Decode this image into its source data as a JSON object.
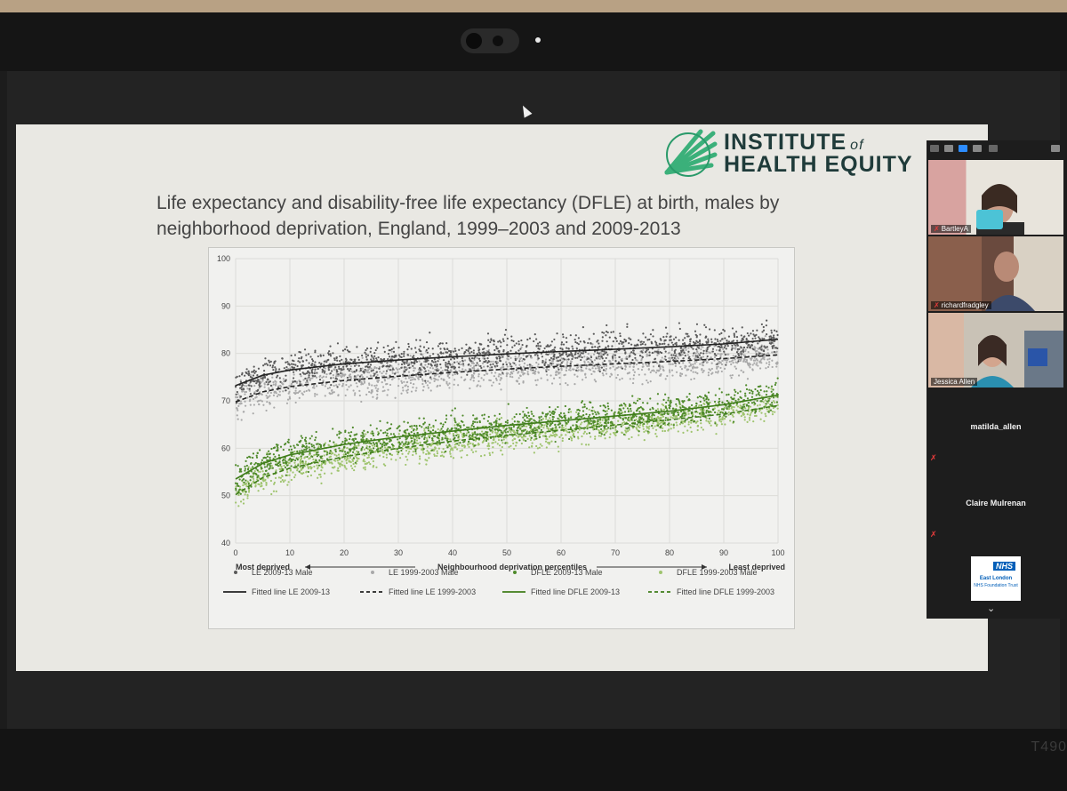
{
  "device": {
    "model": "T490"
  },
  "slide": {
    "logo_line1": "INSTITUTE",
    "logo_of": "of",
    "logo_line2": "HEALTH EQUITY",
    "title_line1": "Life expectancy and disability-free life expectancy (DFLE) at birth, males by",
    "title_line2": "neighborhood deprivation, England, 1999–2003 and 2009-2013"
  },
  "chart_data": {
    "type": "scatter",
    "xlim": [
      0,
      100
    ],
    "ylim": [
      40,
      100
    ],
    "x_ticks": [
      0,
      10,
      20,
      30,
      40,
      50,
      60,
      70,
      80,
      90,
      100
    ],
    "y_ticks": [
      40,
      50,
      60,
      70,
      80,
      90,
      100
    ],
    "xlabel": "Neighbourhood deprivation percentiles",
    "xlabel_left": "Most deprived",
    "xlabel_right": "Least deprived",
    "grid": true,
    "legend_position": "bottom",
    "fitted_lines": [
      {
        "name": "Fitted line LE 2009-13",
        "color": "#222222",
        "dash": false,
        "x": [
          0,
          5,
          10,
          20,
          30,
          40,
          50,
          60,
          70,
          80,
          90,
          100
        ],
        "y": [
          73.2,
          75.4,
          76.5,
          77.8,
          78.6,
          79.3,
          79.9,
          80.4,
          80.9,
          81.4,
          82.0,
          83.0
        ]
      },
      {
        "name": "Fitted line LE 1999-2003",
        "color": "#222222",
        "dash": true,
        "x": [
          0,
          5,
          10,
          20,
          30,
          40,
          50,
          60,
          70,
          80,
          90,
          100
        ],
        "y": [
          69.8,
          71.9,
          73.0,
          74.3,
          75.2,
          76.0,
          76.7,
          77.3,
          77.8,
          78.3,
          78.9,
          79.7
        ]
      },
      {
        "name": "Fitted line DFLE 2009-13",
        "color": "#3f7d1a",
        "dash": false,
        "x": [
          0,
          5,
          10,
          20,
          30,
          40,
          50,
          60,
          70,
          80,
          90,
          100
        ],
        "y": [
          53.5,
          56.8,
          58.6,
          60.8,
          62.4,
          63.6,
          64.8,
          65.8,
          66.8,
          67.8,
          69.2,
          71.2
        ]
      },
      {
        "name": "Fitted line DFLE 1999-2003",
        "color": "#3f7d1a",
        "dash": true,
        "x": [
          0,
          5,
          10,
          20,
          30,
          40,
          50,
          60,
          70,
          80,
          90,
          100
        ],
        "y": [
          50.2,
          53.8,
          55.8,
          58.2,
          60.0,
          61.5,
          62.7,
          63.8,
          64.9,
          66.0,
          67.2,
          69.0
        ]
      }
    ],
    "scatter_series": [
      {
        "name": "LE 2009-13 Male",
        "color": "#5a5a5a",
        "spread": 2.6,
        "ref": 0
      },
      {
        "name": "LE 1999-2003 Male",
        "color": "#a9a9a9",
        "spread": 2.6,
        "ref": 1
      },
      {
        "name": "DFLE 2009-13 Male",
        "color": "#4f8a2b",
        "spread": 2.4,
        "ref": 2
      },
      {
        "name": "DFLE 1999-2003 Male",
        "color": "#9fc46e",
        "spread": 2.4,
        "ref": 3
      }
    ],
    "legend": [
      {
        "label": "LE 2009-13 Male",
        "kind": "dot",
        "color": "#5a5a5a"
      },
      {
        "label": "LE 1999-2003 Male",
        "kind": "dot",
        "color": "#a9a9a9"
      },
      {
        "label": "DFLE 2009-13 Male",
        "kind": "dot",
        "color": "#4f8a2b"
      },
      {
        "label": "DFLE 1999-2003 Male",
        "kind": "dot",
        "color": "#9fc46e"
      },
      {
        "label": "Fitted line LE 2009-13",
        "kind": "line",
        "color": "#222222",
        "dash": false
      },
      {
        "label": "Fitted line LE 1999-2003",
        "kind": "line",
        "color": "#222222",
        "dash": true
      },
      {
        "label": "Fitted line DFLE 2009-13",
        "kind": "line",
        "color": "#3f7d1a",
        "dash": false
      },
      {
        "label": "Fitted line DFLE 1999-2003",
        "kind": "line",
        "color": "#3f7d1a",
        "dash": true
      }
    ]
  },
  "participants": {
    "video": [
      {
        "name": "BartleyA",
        "muted": true
      },
      {
        "name": "richardfradgley",
        "muted": true
      },
      {
        "name": "Jessica Allen",
        "muted": false
      }
    ],
    "audio_only": [
      {
        "name": "matilda_allen",
        "muted": true
      },
      {
        "name": "Claire Mulrenan",
        "muted": true
      }
    ],
    "logo_tile": {
      "badge": "NHS",
      "line1": "East London",
      "line2": "NHS Foundation Trust"
    }
  }
}
